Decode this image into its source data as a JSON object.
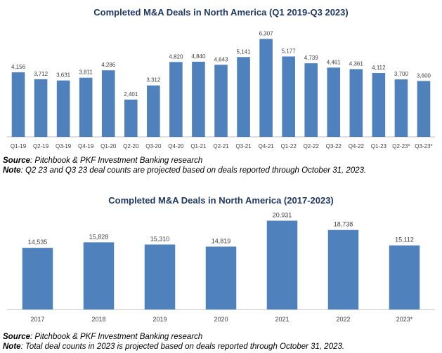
{
  "sources": {
    "label": "Source",
    "note_label": "Note",
    "chart1_source": ": Pitchbook & PKF Investment Banking research",
    "chart1_note": ": Q2 23 and Q3 23 deal counts are projected based on deals reported through October 31, 2023.",
    "chart2_source": ": Pitchbook & PKF Investment Banking research",
    "chart2_note": ": Total deal counts in 2023 is projected based on deals reported through October 31, 2023."
  },
  "colors": {
    "bar": "#4f81bd",
    "title": "#1f3864",
    "axis": "#bfbfbf"
  },
  "chart_data": [
    {
      "type": "bar",
      "title": "Completed M&A Deals in North America (Q1 2019-Q3 2023)",
      "categories": [
        "Q1-19",
        "Q2-19",
        "Q3-19",
        "Q4-19",
        "Q1-20",
        "Q2-20",
        "Q3-20",
        "Q4-20",
        "Q1-21",
        "Q2-21",
        "Q3-21",
        "Q4-21",
        "Q1-22",
        "Q2-22",
        "Q3-22",
        "Q4-22",
        "Q1-23",
        "Q2-23*",
        "Q3-23*"
      ],
      "values": [
        4156,
        3712,
        3631,
        3811,
        4286,
        2401,
        3312,
        4820,
        4840,
        4643,
        5141,
        6307,
        5177,
        4739,
        4461,
        4361,
        4112,
        3700,
        3600
      ],
      "labels": [
        "4,156",
        "3,712",
        "3,631",
        "3,811",
        "4,286",
        "2,401",
        "3,312",
        "4,820",
        "4,840",
        "4,643",
        "5,141",
        "6,307",
        "5,177",
        "4,739",
        "4,461",
        "4,361",
        "4,112",
        "3,700",
        "3,600"
      ],
      "ylim": [
        0,
        6600
      ],
      "grid": false,
      "legend": false
    },
    {
      "type": "bar",
      "title": "Completed M&A Deals in North America (2017-2023)",
      "categories": [
        "2017",
        "2018",
        "2019",
        "2020",
        "2021",
        "2022",
        "2023*"
      ],
      "values": [
        14535,
        15828,
        15310,
        14819,
        20931,
        18738,
        15112
      ],
      "labels": [
        "14,535",
        "15,828",
        "15,310",
        "14,819",
        "20,931",
        "18,738",
        "15,112"
      ],
      "ylim": [
        0,
        22000
      ],
      "grid": false,
      "legend": false
    }
  ]
}
